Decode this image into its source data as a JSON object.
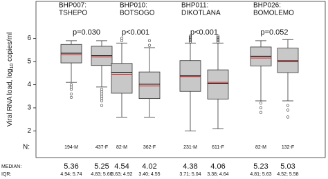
{
  "chart_data": {
    "type": "box",
    "ylabel": "Viral RNA load, log",
    "ylabel_sub": "10",
    "ylabel_end": " copies/ml",
    "ylim": [
      0.85,
      7.6
    ],
    "yticks": [
      2,
      3,
      4,
      5,
      6
    ],
    "row_labels": {
      "n": "N:",
      "median": "MEDIAN:",
      "iqr": "IQR:"
    },
    "box_color": "#c8c8c8",
    "median_color": "#000000",
    "mean_color": "#e02020",
    "groups": [
      {
        "label": "BHP007:",
        "sublabel": "TSHEPO",
        "p_label": "p=0.030",
        "boxes": [
          {
            "n_label": "194-M",
            "median": 5.36,
            "mean": 5.3,
            "q1": 4.94,
            "q3": 5.74,
            "whisker_low": 4.1,
            "whisker_high": 5.9,
            "outliers": [
              4.0,
              3.9,
              3.8,
              3.6,
              3.45
            ],
            "iqr_label": "4.94; 5.74"
          },
          {
            "n_label": "437-F",
            "median": 5.25,
            "mean": 5.2,
            "q1": 4.83,
            "q3": 5.66,
            "whisker_low": 3.9,
            "whisker_high": 5.9,
            "outliers": [
              3.8,
              3.7,
              3.6,
              3.5,
              3.4,
              3.3,
              3.1
            ],
            "iqr_label": "4.83; 5.66"
          }
        ]
      },
      {
        "label": "BHP010:",
        "sublabel": "BOTSOGO",
        "p_label": "p<0.001",
        "boxes": [
          {
            "n_label": "82-M",
            "median": 4.54,
            "mean": 4.45,
            "q1": 3.63,
            "q3": 4.92,
            "whisker_low": 2.6,
            "whisker_high": 5.8,
            "outliers": [
              5.9,
              6.0
            ],
            "iqr_label": "3.63; 4.92"
          },
          {
            "n_label": "362-F",
            "median": 4.02,
            "mean": 3.95,
            "q1": 3.4,
            "q3": 4.55,
            "whisker_low": 2.6,
            "whisker_high": 5.6,
            "outliers": [
              5.7,
              5.9
            ],
            "iqr_label": "3.40; 4.55"
          }
        ]
      },
      {
        "label": "BHP011:",
        "sublabel": "DIKOTLANA",
        "p_label": "p<0.001",
        "boxes": [
          {
            "n_label": "231-M",
            "median": 4.38,
            "mean": 4.35,
            "q1": 3.71,
            "q3": 5.04,
            "whisker_low": 2.0,
            "whisker_high": 5.8,
            "outliers": [
              5.85,
              5.9,
              5.95,
              6.0,
              6.05,
              6.1
            ],
            "iqr_label": "3.71; 5.04"
          },
          {
            "n_label": "611-F",
            "median": 4.06,
            "mean": 4.1,
            "q1": 3.38,
            "q3": 4.64,
            "whisker_low": 2.1,
            "whisker_high": 5.8,
            "outliers": [
              5.85,
              5.9,
              5.95,
              6.0,
              6.05,
              6.1
            ],
            "iqr_label": "3.38; 4.64"
          }
        ]
      },
      {
        "label": "BHP026:",
        "sublabel": "BOMOLEMO",
        "p_label": "p=0.052",
        "boxes": [
          {
            "n_label": "82-M",
            "median": 5.23,
            "mean": 5.15,
            "q1": 4.81,
            "q3": 5.63,
            "whisker_low": 3.3,
            "whisker_high": 5.9,
            "outliers": [
              3.2,
              3.0,
              2.8
            ],
            "iqr_label": "4.81; 5.63"
          },
          {
            "n_label": "132-F",
            "median": 5.03,
            "mean": 5.0,
            "q1": 4.52,
            "q3": 5.58,
            "whisker_low": 3.3,
            "whisker_high": 5.95,
            "outliers": [
              3.1,
              2.9,
              2.6
            ],
            "iqr_label": "4.52; 5.58"
          }
        ]
      }
    ]
  }
}
